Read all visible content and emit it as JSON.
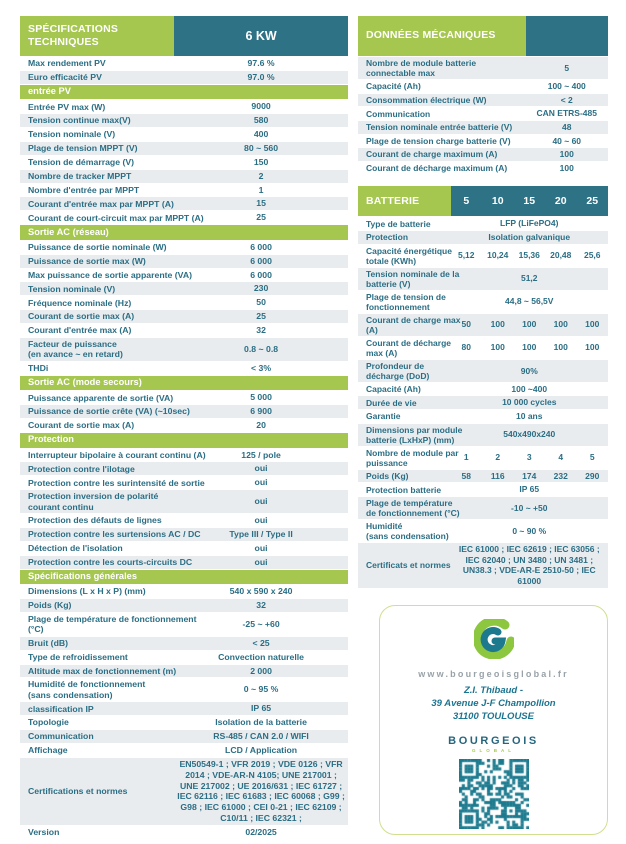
{
  "colors": {
    "green": "#a5c750",
    "teal": "#2e7286",
    "text": "#2b6e84",
    "row_alt": "#e8ecef",
    "qr": "#1d7a8e",
    "logo_green": "#8dc63f",
    "logo_teal": "#1d7a8e",
    "card_border": "#cfe08f"
  },
  "spec_table": {
    "title": "SPÉCIFICATIONS\nTECHNIQUES",
    "model": "6 KW",
    "rows": [
      {
        "type": "row",
        "label": "Max rendement PV",
        "value": "97.6 %"
      },
      {
        "type": "row",
        "label": "Euro efficacité PV",
        "value": "97.0 %"
      },
      {
        "type": "section",
        "label": "entrée PV"
      },
      {
        "type": "row",
        "label": "Entrée PV max (W)",
        "value": "9000"
      },
      {
        "type": "row",
        "label": "Tension continue max(V)",
        "value": "580"
      },
      {
        "type": "row",
        "label": "Tension nominale (V)",
        "value": "400"
      },
      {
        "type": "row",
        "label": "Plage de tension MPPT (V)",
        "value": "80 ~ 560"
      },
      {
        "type": "row",
        "label": "Tension de démarrage (V)",
        "value": "150"
      },
      {
        "type": "row",
        "label": "Nombre de tracker MPPT",
        "value": "2"
      },
      {
        "type": "row",
        "label": "Nombre d'entrée par MPPT",
        "value": "1"
      },
      {
        "type": "row",
        "label": "Courant d'entrée max par MPPT (A)",
        "value": "15"
      },
      {
        "type": "row",
        "label": "Courant de court-circuit max par MPPT (A)",
        "value": "25"
      },
      {
        "type": "section",
        "label": "Sortie AC (réseau)"
      },
      {
        "type": "row",
        "label": "Puissance de sortie nominale (W)",
        "value": "6 000"
      },
      {
        "type": "row",
        "label": "Puissance de sortie max (W)",
        "value": "6 000"
      },
      {
        "type": "row",
        "label": "Max puissance de sortie apparente (VA)",
        "value": "6 000"
      },
      {
        "type": "row",
        "label": "Tension nominale (V)",
        "value": "230"
      },
      {
        "type": "row",
        "label": "Fréquence nominale (Hz)",
        "value": "50"
      },
      {
        "type": "row",
        "label": "Courant de sortie max (A)",
        "value": "25"
      },
      {
        "type": "row",
        "label": "Courant d'entrée max (A)",
        "value": "32"
      },
      {
        "type": "row",
        "label": "Facteur de puissance\n(en avance ~ en retard)",
        "value": "0.8 ~ 0.8"
      },
      {
        "type": "row",
        "label": "THDi",
        "value": "< 3%"
      },
      {
        "type": "section",
        "label": "Sortie AC (mode secours)"
      },
      {
        "type": "row",
        "label": "Puissance apparente de sortie (VA)",
        "value": "5 000"
      },
      {
        "type": "row",
        "label": "Puissance de sortie crête (VA) (~10sec)",
        "value": "6 900"
      },
      {
        "type": "row",
        "label": "Courant de sortie max (A)",
        "value": "20"
      },
      {
        "type": "section",
        "label": "Protection"
      },
      {
        "type": "row",
        "label": "Interrupteur bipolaire à courant continu (A)",
        "value": "125 / pole"
      },
      {
        "type": "row",
        "label": "Protection contre l'ilotage",
        "value": "oui"
      },
      {
        "type": "row",
        "label": "Protection contre les surintensité de sortie",
        "value": "oui"
      },
      {
        "type": "row",
        "label": "Protection inversion de polarité\ncourant continu",
        "value": "oui"
      },
      {
        "type": "row",
        "label": "Protection des défauts de lignes",
        "value": "oui"
      },
      {
        "type": "row",
        "label": "Protection contre les surtensions AC / DC",
        "value": "Type III / Type II"
      },
      {
        "type": "row",
        "label": "Détection de l'isolation",
        "value": "oui"
      },
      {
        "type": "row",
        "label": "Protection contre les courts-circuits DC",
        "value": "oui"
      },
      {
        "type": "section",
        "label": "Spécifications générales"
      },
      {
        "type": "row",
        "label": "Dimensions (L x H x P) (mm)",
        "value": "540 x 590 x 240"
      },
      {
        "type": "row",
        "label": "Poids (Kg)",
        "value": "32"
      },
      {
        "type": "row",
        "label": "Plage de température de fonctionnement\n(°C)",
        "value": "-25 ~ +60"
      },
      {
        "type": "row",
        "label": "Bruit (dB)",
        "value": "< 25"
      },
      {
        "type": "row",
        "label": "Type de refroidissement",
        "value": "Convection naturelle"
      },
      {
        "type": "row",
        "label": "Altitude max de fonctionnement (m)",
        "value": "2 000"
      },
      {
        "type": "row",
        "label": "Humidité de fonctionnement\n(sans condensation)",
        "value": "0 ~ 95 %"
      },
      {
        "type": "row",
        "label": "classification IP",
        "value": "IP 65"
      },
      {
        "type": "row",
        "label": "Topologie",
        "value": "Isolation de la batterie"
      },
      {
        "type": "row",
        "label": "Communication",
        "value": "RS-485 / CAN 2.0 / WIFI"
      },
      {
        "type": "row",
        "label": "Affichage",
        "value": "LCD / Application"
      },
      {
        "type": "row",
        "label": "Certifications et normes",
        "value": "EN50549-1 ; VFR 2019 ; VDE 0126 ; VFR 2014 ; VDE-AR-N 4105; UNE 217001 ; UNE 217002 ; UE 2016/631 ; IEC 61727 ; IEC 62116 ; IEC 61683 ; IEC 60068 ; G99 ; G98 ; IEC 61000 ; CEI 0-21 ; IEC 62109 ; C10/11 ; IEC 62321 ;"
      },
      {
        "type": "row",
        "label": "Version",
        "value": "02/2025"
      }
    ]
  },
  "mech_table": {
    "title": "DONNÉES MÉCANIQUES",
    "rows": [
      {
        "label": "Nombre de module batterie\nconnectable max",
        "value": "5"
      },
      {
        "label": "Capacité (Ah)",
        "value": "100 ~ 400"
      },
      {
        "label": "Consommation électrique (W)",
        "value": "< 2"
      },
      {
        "label": "Communication",
        "value": "CAN ETRS-485"
      },
      {
        "label": "Tension nominale entrée batterie (V)",
        "value": "48"
      },
      {
        "label": "Plage de tension charge batterie (V)",
        "value": "40 ~ 60"
      },
      {
        "label": "Courant de charge maximum (A)",
        "value": "100"
      },
      {
        "label": "Courant de décharge maximum (A)",
        "value": "100"
      }
    ]
  },
  "battery_table": {
    "title": "BATTERIE",
    "columns": [
      "5",
      "10",
      "15",
      "20",
      "25"
    ],
    "rows": [
      {
        "label": "Type de batterie",
        "span": "LFP (LiFePO4)"
      },
      {
        "label": "Protection",
        "span": "Isolation galvanique"
      },
      {
        "label": "Capacité énergétique\ntotale (KWh)",
        "cells": [
          "5,12",
          "10,24",
          "15,36",
          "20,48",
          "25,6"
        ]
      },
      {
        "label": "Tension nominale de la\nbatterie (V)",
        "span": "51,2"
      },
      {
        "label": "Plage de tension de\nfonctionnement",
        "span": "44,8 ~ 56,5V"
      },
      {
        "label": "Courant de charge max\n(A)",
        "cells": [
          "50",
          "100",
          "100",
          "100",
          "100"
        ]
      },
      {
        "label": "Courant de décharge\nmax (A)",
        "cells": [
          "80",
          "100",
          "100",
          "100",
          "100"
        ]
      },
      {
        "label": "Profondeur de\ndécharge (DoD)",
        "span": "90%"
      },
      {
        "label": "Capacité (Ah)",
        "span": "100 ~400"
      },
      {
        "label": "Durée de vie",
        "span": "10 000 cycles"
      },
      {
        "label": "Garantie",
        "span": "10 ans"
      },
      {
        "label": "Dimensions par module\nbatterie (LxHxP) (mm)",
        "span": "540x490x240"
      },
      {
        "label": "Nombre de module par\npuissance",
        "cells": [
          "1",
          "2",
          "3",
          "4",
          "5"
        ]
      },
      {
        "label": "Poids (Kg)",
        "cells": [
          "58",
          "116",
          "174",
          "232",
          "290"
        ]
      },
      {
        "label": "Protection batterie",
        "span": "IP 65"
      },
      {
        "label": "Plage de température\nde fonctionnement (°C)",
        "span": "-10 ~ +50"
      },
      {
        "label": "Humidité\n(sans condensation)",
        "span": "0 ~ 90 %"
      },
      {
        "label": "Certificats et normes",
        "span": "IEC 61000 ; IEC 62619 ; IEC 63056 ; IEC 62040 ; UN 3480 ; UN 3481 ; UN38.3 ; VDE-AR-E 2510-50 ; IEC 61000"
      }
    ]
  },
  "card": {
    "website": "www.bourgeoisglobal.fr",
    "address": [
      "Z.I. Thibaud -",
      "39 Avenue J-F Champollion",
      "31100 TOULOUSE"
    ],
    "brand": "BOURGEOIS",
    "brand_sub": "GLOBAL"
  }
}
